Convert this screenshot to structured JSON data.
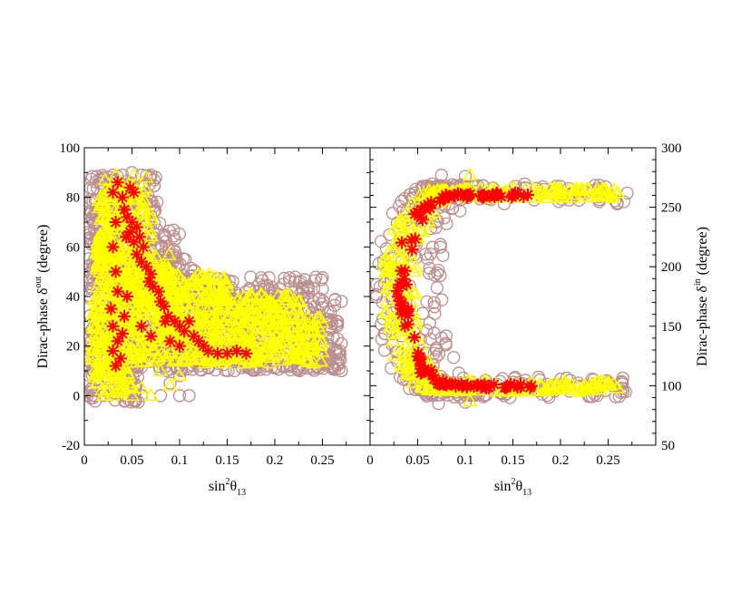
{
  "chart_data": [
    {
      "type": "scatter",
      "panel": "left",
      "xlabel_base": "sin",
      "xlabel_sup": "2",
      "xlabel_sym": "θ",
      "xlabel_sub": "13",
      "ylabel_base": "Dirac-phase δ",
      "ylabel_sup": "out",
      "ylabel_unit": " (degree)",
      "xlim": [
        0,
        0.3
      ],
      "ylim": [
        -20,
        100
      ],
      "xticks": [
        0,
        0.05,
        0.1,
        0.15,
        0.2,
        0.25
      ],
      "xtick_labels": [
        "0",
        "0.05",
        "0.1",
        "0.15",
        "0.2",
        "0.25"
      ],
      "yticks": [
        -20,
        0,
        20,
        40,
        60,
        80,
        100
      ],
      "ytick_labels": [
        "-20",
        "0",
        "20",
        "40",
        "60",
        "80",
        "100"
      ],
      "y_axis_side": "left",
      "grid": false,
      "series": [
        {
          "marker": "circle",
          "color": "#bc8f8f",
          "bands": [
            {
              "x": [
                0.003,
                0.27
              ],
              "y_center": 15,
              "width": 5
            },
            {
              "x": [
                0.004,
                0.27
              ],
              "y_center": 24,
              "width": 6
            },
            {
              "x": [
                0.004,
                0.265
              ],
              "y_center": 33,
              "width": 6
            },
            {
              "x": [
                0.004,
                0.25
              ],
              "y_center": 42,
              "width": 6
            },
            {
              "x": [
                0.004,
                0.12
              ],
              "y_center": 50,
              "width": 6
            },
            {
              "x": [
                0.004,
                0.1
              ],
              "y_center": 60,
              "width": 7
            },
            {
              "x": [
                0.005,
                0.08
              ],
              "y_center": 72,
              "width": 7
            },
            {
              "x": [
                0.006,
                0.075
              ],
              "y_center": 83,
              "width": 6
            },
            {
              "x": [
                0.003,
                0.06
              ],
              "y_center": 5,
              "width": 8
            }
          ],
          "points": [
            [
              0.003,
              0
            ],
            [
              0.01,
              0
            ],
            [
              0.02,
              0
            ],
            [
              0.04,
              0
            ],
            [
              0.06,
              0
            ],
            [
              0.08,
              0
            ],
            [
              0.1,
              0
            ],
            [
              0.11,
              0
            ],
            [
              0.02,
              88
            ],
            [
              0.03,
              89
            ],
            [
              0.04,
              89
            ],
            [
              0.05,
              90
            ],
            [
              0.06,
              89
            ],
            [
              0.07,
              89
            ],
            [
              0.075,
              88
            ],
            [
              0.1,
              8
            ],
            [
              0.09,
              5
            ],
            [
              0.27,
              38
            ],
            [
              0.265,
              30
            ],
            [
              0.27,
              21
            ],
            [
              0.26,
              12
            ],
            [
              0.25,
              43
            ]
          ]
        },
        {
          "marker": "triangle",
          "color": "#ffff00",
          "bands": [
            {
              "x": [
                0.005,
                0.25
              ],
              "y_center": 18,
              "width": 5
            },
            {
              "x": [
                0.008,
                0.25
              ],
              "y_center": 27,
              "width": 5
            },
            {
              "x": [
                0.008,
                0.23
              ],
              "y_center": 36,
              "width": 5
            },
            {
              "x": [
                0.01,
                0.15
              ],
              "y_center": 44,
              "width": 5
            },
            {
              "x": [
                0.01,
                0.09
              ],
              "y_center": 53,
              "width": 6
            },
            {
              "x": [
                0.012,
                0.07
              ],
              "y_center": 65,
              "width": 8
            },
            {
              "x": [
                0.015,
                0.065
              ],
              "y_center": 78,
              "width": 8
            },
            {
              "x": [
                0.01,
                0.05
              ],
              "y_center": 8,
              "width": 7
            }
          ],
          "points": [
            [
              0.02,
              0
            ],
            [
              0.03,
              0
            ],
            [
              0.05,
              0
            ],
            [
              0.07,
              0
            ],
            [
              0.06,
              3
            ],
            [
              0.04,
              3
            ],
            [
              0.022,
              87
            ],
            [
              0.033,
              89
            ],
            [
              0.052,
              89
            ],
            [
              0.065,
              88
            ],
            [
              0.045,
              84
            ],
            [
              0.1,
              8
            ],
            [
              0.09,
              4
            ],
            [
              0.08,
              10
            ]
          ]
        },
        {
          "marker": "asterisk",
          "color": "#ff0000",
          "points": [
            [
              0.03,
              82
            ],
            [
              0.035,
              86
            ],
            [
              0.04,
              80
            ],
            [
              0.048,
              84
            ],
            [
              0.052,
              82
            ],
            [
              0.042,
              75
            ],
            [
              0.045,
              72
            ],
            [
              0.05,
              70
            ],
            [
              0.055,
              68
            ],
            [
              0.048,
              66
            ],
            [
              0.044,
              64
            ],
            [
              0.052,
              62
            ],
            [
              0.058,
              64
            ],
            [
              0.062,
              60
            ],
            [
              0.055,
              57
            ],
            [
              0.06,
              54
            ],
            [
              0.065,
              52
            ],
            [
              0.07,
              49
            ],
            [
              0.068,
              46
            ],
            [
              0.072,
              44
            ],
            [
              0.078,
              42
            ],
            [
              0.08,
              38
            ],
            [
              0.084,
              36
            ],
            [
              0.088,
              32
            ],
            [
              0.095,
              30
            ],
            [
              0.1,
              28
            ],
            [
              0.105,
              26
            ],
            [
              0.11,
              30
            ],
            [
              0.115,
              24
            ],
            [
              0.12,
              22
            ],
            [
              0.125,
              20
            ],
            [
              0.13,
              18
            ],
            [
              0.14,
              17
            ],
            [
              0.15,
              17
            ],
            [
              0.16,
              18
            ],
            [
              0.17,
              17
            ],
            [
              0.033,
              70
            ],
            [
              0.03,
              60
            ],
            [
              0.033,
              50
            ],
            [
              0.035,
              42
            ],
            [
              0.028,
              35
            ],
            [
              0.03,
              28
            ],
            [
              0.035,
              22
            ],
            [
              0.03,
              18
            ],
            [
              0.033,
              12
            ],
            [
              0.038,
              15
            ],
            [
              0.04,
              25
            ],
            [
              0.042,
              32
            ],
            [
              0.045,
              40
            ],
            [
              0.06,
              28
            ],
            [
              0.07,
              24
            ],
            [
              0.085,
              30
            ],
            [
              0.09,
              22
            ],
            [
              0.1,
              20
            ]
          ]
        }
      ]
    },
    {
      "type": "scatter",
      "panel": "right",
      "xlabel_base": "sin",
      "xlabel_sup": "2",
      "xlabel_sym": "θ",
      "xlabel_sub": "13",
      "ylabel_base": "Dirac-phase δ",
      "ylabel_sup": "in",
      "ylabel_unit": " (degree)",
      "xlim": [
        0,
        0.3
      ],
      "ylim": [
        50,
        300
      ],
      "xticks": [
        0,
        0.05,
        0.1,
        0.15,
        0.2,
        0.25
      ],
      "xtick_labels": [
        "0",
        "0.05",
        "0.1",
        "0.15",
        "0.2",
        "0.25"
      ],
      "yticks": [
        50,
        100,
        150,
        200,
        250,
        300
      ],
      "ytick_labels": [
        "50",
        "100",
        "150",
        "200",
        "250",
        "300"
      ],
      "y_axis_side": "right",
      "grid": false,
      "series": [
        {
          "marker": "circle",
          "color": "#bc8f8f",
          "arc": {
            "x_apex": 0.004,
            "y_center": 180,
            "y_top": 270,
            "y_bottom": 90,
            "x_end": 0.27,
            "thickness": 0.12
          },
          "points": [
            [
              0.075,
              277
            ],
            [
              0.072,
              85
            ],
            [
              0.27,
              262
            ],
            [
              0.265,
              98
            ],
            [
              0.1,
              276
            ],
            [
              0.1,
              86
            ]
          ]
        },
        {
          "marker": "triangle",
          "color": "#ffff00",
          "arc": {
            "x_apex": 0.012,
            "y_center": 180,
            "y_top": 266,
            "y_bottom": 95,
            "x_end": 0.26,
            "thickness": 0.06
          },
          "points": [
            [
              0.105,
              277
            ],
            [
              0.105,
              87
            ],
            [
              0.26,
              262
            ],
            [
              0.26,
              98
            ]
          ]
        },
        {
          "marker": "asterisk",
          "color": "#ff0000",
          "arc": {
            "x_apex": 0.025,
            "y_center": 180,
            "y_top": 262,
            "y_bottom": 98,
            "x_end": 0.17,
            "thickness": 0.025
          },
          "points": []
        }
      ]
    }
  ]
}
